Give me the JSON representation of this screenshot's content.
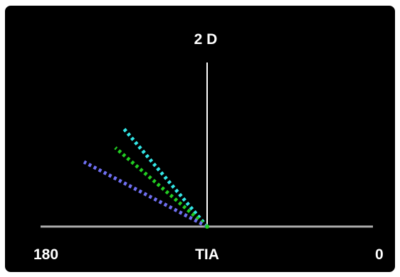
{
  "display": {
    "title": "2 D",
    "left_label": "180",
    "center_label": "TIA",
    "right_label": "0"
  },
  "colors": {
    "background": "#000000",
    "axis_horizontal": "#aaaaaa",
    "axis_vertical": "#ffffff",
    "text": "#ffffff"
  },
  "rays": [
    {
      "name": "ray-cyan",
      "color": "#33e6e6"
    },
    {
      "name": "ray-green",
      "color": "#22cc22"
    },
    {
      "name": "ray-violet",
      "color": "#6f6ff2"
    }
  ]
}
